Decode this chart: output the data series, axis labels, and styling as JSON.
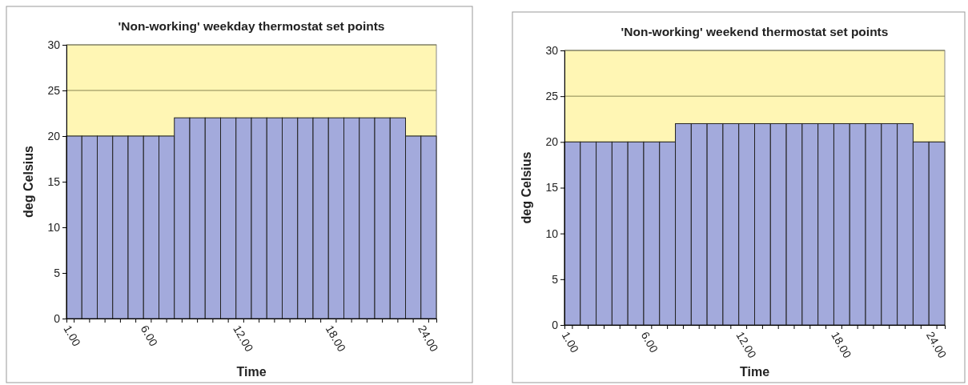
{
  "chart_data": [
    {
      "type": "bar",
      "title": "'Non-working' weekday thermostat set points",
      "xlabel": "Time",
      "ylabel": "deg Celsius",
      "categories": [
        "1.00",
        null,
        null,
        null,
        null,
        "6.00",
        null,
        null,
        null,
        null,
        null,
        "12.00",
        null,
        null,
        null,
        null,
        null,
        "18.00",
        null,
        null,
        null,
        null,
        null,
        "24.00"
      ],
      "values": [
        20,
        20,
        20,
        20,
        20,
        20,
        20,
        22,
        22,
        22,
        22,
        22,
        22,
        22,
        22,
        22,
        22,
        22,
        22,
        22,
        22,
        22,
        20,
        20
      ],
      "color": "#a3aadc",
      "ylim": [
        0,
        30
      ],
      "yticks": [
        0,
        5,
        10,
        15,
        20,
        25,
        30
      ],
      "grid": "y"
    },
    {
      "type": "bar",
      "title": "'Non-working' weekend thermostat set points",
      "xlabel": "Time",
      "ylabel": "deg Celsius",
      "categories": [
        "1.00",
        null,
        null,
        null,
        null,
        "6.00",
        null,
        null,
        null,
        null,
        null,
        "12.00",
        null,
        null,
        null,
        null,
        null,
        "18.00",
        null,
        null,
        null,
        null,
        null,
        "24.00"
      ],
      "values": [
        20,
        20,
        20,
        20,
        20,
        20,
        20,
        22,
        22,
        22,
        22,
        22,
        22,
        22,
        22,
        22,
        22,
        22,
        22,
        22,
        22,
        22,
        20,
        20
      ],
      "color": "#a3aadc",
      "ylim": [
        0,
        30
      ],
      "yticks": [
        0,
        5,
        10,
        15,
        20,
        25,
        30
      ],
      "grid": "y"
    }
  ]
}
